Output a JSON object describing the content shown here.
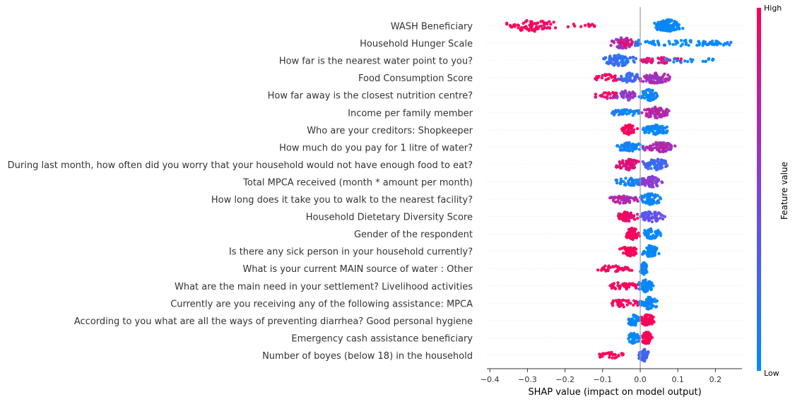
{
  "chart_data": {
    "type": "scatter",
    "subtype": "shap-beeswarm",
    "xlabel": "SHAP value (impact on model output)",
    "xlim": [
      -0.42,
      0.27
    ],
    "xticks": [
      -0.4,
      -0.3,
      -0.2,
      -0.1,
      0.0,
      0.1,
      0.2
    ],
    "xtick_labels": [
      "−0.4",
      "−0.3",
      "−0.2",
      "−0.1",
      "0.0",
      "0.1",
      "0.2"
    ],
    "colorbar": {
      "label": "Feature value",
      "high_label": "High",
      "low_label": "Low",
      "high_color": "#ff0052",
      "low_color": "#008bfb"
    },
    "zero_line": true,
    "grid": false,
    "features": [
      {
        "name": "WASH Beneficiary",
        "groups": [
          {
            "range": [
              -0.375,
              -0.2
            ],
            "level": 1.0,
            "n": 70,
            "dense": 0.9
          },
          {
            "range": [
              -0.2,
              -0.12
            ],
            "level": 1.0,
            "n": 14,
            "dense": 0.2
          },
          {
            "range": [
              0.035,
              0.115
            ],
            "level": 0.0,
            "n": 130,
            "dense": 1.0
          }
        ]
      },
      {
        "name": "Household Hunger Scale",
        "groups": [
          {
            "range": [
              -0.08,
              -0.01
            ],
            "level": 0.65,
            "n": 60,
            "dense": 0.9
          },
          {
            "range": [
              -0.06,
              -0.02
            ],
            "level": 0.95,
            "n": 10,
            "dense": 0.3
          },
          {
            "range": [
              0.005,
              0.245
            ],
            "level": 0.0,
            "n": 75,
            "dense": 0.35
          },
          {
            "range": [
              -0.015,
              0.0
            ],
            "level": 0.1,
            "n": 10,
            "dense": 0.5
          }
        ]
      },
      {
        "name": "How far is the nearest water point to you?",
        "groups": [
          {
            "range": [
              -0.11,
              -0.005
            ],
            "level": 0.2,
            "n": 80,
            "dense": 0.9
          },
          {
            "range": [
              0.0,
              0.11
            ],
            "level": 0.85,
            "n": 40,
            "dense": 0.4
          },
          {
            "range": [
              0.05,
              0.21
            ],
            "level": 0.05,
            "n": 20,
            "dense": 0.25
          }
        ]
      },
      {
        "name": "Food Consumption Score",
        "groups": [
          {
            "range": [
              -0.12,
              -0.05
            ],
            "level": 0.95,
            "n": 30,
            "dense": 0.5
          },
          {
            "range": [
              -0.06,
              0.0
            ],
            "level": 0.25,
            "n": 40,
            "dense": 0.8
          },
          {
            "range": [
              -0.01,
              0.085
            ],
            "level": 0.65,
            "n": 80,
            "dense": 0.9
          }
        ]
      },
      {
        "name": "How far away is the closest nutrition centre?",
        "groups": [
          {
            "range": [
              -0.12,
              -0.06
            ],
            "level": 0.9,
            "n": 25,
            "dense": 0.5
          },
          {
            "range": [
              -0.065,
              -0.005
            ],
            "level": 0.6,
            "n": 40,
            "dense": 0.8
          },
          {
            "range": [
              -0.005,
              0.05
            ],
            "level": 0.05,
            "n": 60,
            "dense": 0.95
          }
        ]
      },
      {
        "name": "Income per family member",
        "groups": [
          {
            "range": [
              -0.075,
              0.0
            ],
            "level": 0.05,
            "n": 45,
            "dense": 0.6
          },
          {
            "range": [
              0.0,
              0.085
            ],
            "level": 0.7,
            "n": 80,
            "dense": 0.9
          }
        ]
      },
      {
        "name": "Who are your creditors: Shopkeeper",
        "groups": [
          {
            "range": [
              -0.055,
              -0.005
            ],
            "level": 1.0,
            "n": 45,
            "dense": 0.8
          },
          {
            "range": [
              0.005,
              0.08
            ],
            "level": 0.0,
            "n": 70,
            "dense": 0.7
          }
        ]
      },
      {
        "name": "How much do you pay for 1 litre of water?",
        "groups": [
          {
            "range": [
              -0.07,
              0.01
            ],
            "level": 0.05,
            "n": 60,
            "dense": 0.7
          },
          {
            "range": [
              0.005,
              0.1
            ],
            "level": 0.7,
            "n": 70,
            "dense": 0.8
          }
        ]
      },
      {
        "name": "During last month, how often did you worry that your household would not have enough food to eat?",
        "groups": [
          {
            "range": [
              -0.065,
              0.0
            ],
            "level": 0.85,
            "n": 70,
            "dense": 0.9
          },
          {
            "range": [
              0.0,
              0.08
            ],
            "level": 0.25,
            "n": 70,
            "dense": 0.9
          }
        ]
      },
      {
        "name": "Total MPCA received (month * amount per month)",
        "groups": [
          {
            "range": [
              -0.065,
              0.01
            ],
            "level": 0.05,
            "n": 55,
            "dense": 0.6
          },
          {
            "range": [
              -0.005,
              0.065
            ],
            "level": 0.55,
            "n": 60,
            "dense": 0.85
          }
        ]
      },
      {
        "name": "How long does it take you to walk to the nearest facility?",
        "groups": [
          {
            "range": [
              -0.085,
              -0.005
            ],
            "level": 0.7,
            "n": 55,
            "dense": 0.7
          },
          {
            "range": [
              -0.005,
              0.06
            ],
            "level": 0.05,
            "n": 65,
            "dense": 0.9
          }
        ]
      },
      {
        "name": "Household Dietetary Diversity Score",
        "groups": [
          {
            "range": [
              -0.075,
              0.0
            ],
            "level": 0.95,
            "n": 65,
            "dense": 0.8
          },
          {
            "range": [
              -0.01,
              0.07
            ],
            "level": 0.4,
            "n": 65,
            "dense": 0.85
          }
        ]
      },
      {
        "name": "Gender of the respondent",
        "groups": [
          {
            "range": [
              -0.04,
              0.0
            ],
            "level": 1.0,
            "n": 65,
            "dense": 1.0
          },
          {
            "range": [
              0.0,
              0.06
            ],
            "level": 0.0,
            "n": 55,
            "dense": 0.8
          }
        ]
      },
      {
        "name": "Is there any sick person in your household currently?",
        "groups": [
          {
            "range": [
              -0.055,
              0.0
            ],
            "level": 1.0,
            "n": 55,
            "dense": 0.8
          },
          {
            "range": [
              0.0,
              0.05
            ],
            "level": 0.0,
            "n": 60,
            "dense": 0.9
          }
        ]
      },
      {
        "name": "What is your current MAIN source of water : Other",
        "groups": [
          {
            "range": [
              -0.12,
              -0.02
            ],
            "level": 1.0,
            "n": 40,
            "dense": 0.4
          },
          {
            "range": [
              0.0,
              0.02
            ],
            "level": 0.0,
            "n": 70,
            "dense": 1.0
          }
        ]
      },
      {
        "name": "What are the main need in your settlement? Livelihood activities",
        "groups": [
          {
            "range": [
              -0.08,
              -0.005
            ],
            "level": 1.0,
            "n": 40,
            "dense": 0.6
          },
          {
            "range": [
              -0.005,
              0.035
            ],
            "level": 0.0,
            "n": 70,
            "dense": 1.0
          }
        ]
      },
      {
        "name": "Currently are you receiving any of the following assistance: MPCA",
        "groups": [
          {
            "range": [
              -0.075,
              -0.005
            ],
            "level": 1.0,
            "n": 45,
            "dense": 0.6
          },
          {
            "range": [
              -0.005,
              0.05
            ],
            "level": 0.0,
            "n": 70,
            "dense": 1.0
          }
        ]
      },
      {
        "name": "According to you what are all the ways of preventing diarrhea? Good personal hygiene",
        "groups": [
          {
            "range": [
              -0.035,
              0.0
            ],
            "level": 0.0,
            "n": 50,
            "dense": 0.9
          },
          {
            "range": [
              0.0,
              0.04
            ],
            "level": 1.0,
            "n": 70,
            "dense": 1.0
          }
        ]
      },
      {
        "name": "Emergency cash assistance beneficiary",
        "groups": [
          {
            "range": [
              -0.035,
              0.0
            ],
            "level": 0.0,
            "n": 50,
            "dense": 0.9
          },
          {
            "range": [
              0.0,
              0.035
            ],
            "level": 1.0,
            "n": 65,
            "dense": 1.0
          }
        ]
      },
      {
        "name": "Number of boyes (below 18) in the household",
        "groups": [
          {
            "range": [
              -0.11,
              -0.04
            ],
            "level": 1.0,
            "n": 30,
            "dense": 0.4
          },
          {
            "range": [
              -0.005,
              0.025
            ],
            "level": 0.3,
            "n": 60,
            "dense": 1.0
          }
        ]
      }
    ]
  }
}
